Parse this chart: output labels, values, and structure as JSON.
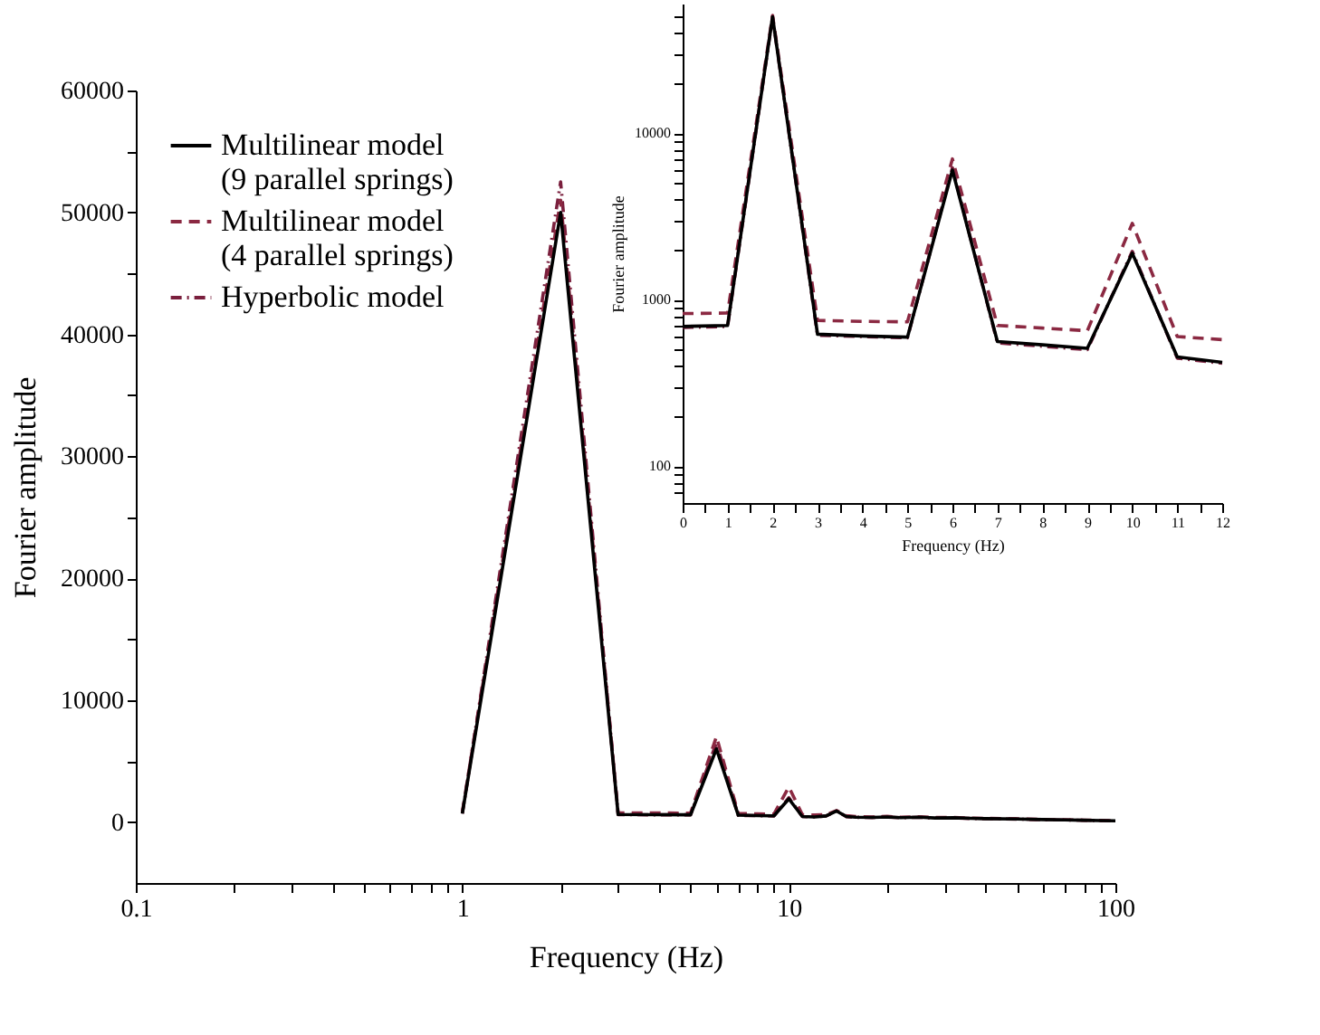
{
  "chart_data": [
    {
      "type": "line",
      "xlabel": "Frequency (Hz)",
      "ylabel": "Fourier amplitude",
      "log": "x",
      "grid": false,
      "legend": "top left",
      "xlim": [
        0.1,
        100
      ],
      "ylim": [
        -5000,
        60000
      ],
      "xticks": [
        0.1,
        {
          "value": 0.2,
          "label": null
        },
        {
          "value": 0.3,
          "label": null
        },
        {
          "value": 0.4,
          "label": null
        },
        {
          "value": 0.5,
          "label": null
        },
        {
          "value": 0.6,
          "label": null
        },
        {
          "value": 0.7,
          "label": null
        },
        {
          "value": 0.8,
          "label": null
        },
        {
          "value": 0.9,
          "label": null
        },
        1,
        {
          "value": 2,
          "label": null
        },
        {
          "value": 3,
          "label": null
        },
        {
          "value": 4,
          "label": null
        },
        {
          "value": 5,
          "label": null
        },
        {
          "value": 6,
          "label": null
        },
        {
          "value": 7,
          "label": null
        },
        {
          "value": 8,
          "label": null
        },
        {
          "value": 9,
          "label": null
        },
        10,
        {
          "value": 20,
          "label": null
        },
        {
          "value": 30,
          "label": null
        },
        {
          "value": 40,
          "label": null
        },
        {
          "value": 50,
          "label": null
        },
        {
          "value": 60,
          "label": null
        },
        {
          "value": 70,
          "label": null
        },
        {
          "value": 80,
          "label": null
        },
        {
          "value": 90,
          "label": null
        },
        100
      ],
      "yticks": [
        0,
        {
          "value": 5000,
          "label": null
        },
        10000,
        {
          "value": 15000,
          "label": null
        },
        20000,
        {
          "value": 25000,
          "label": null
        },
        30000,
        {
          "value": 35000,
          "label": null
        },
        40000,
        {
          "value": 45000,
          "label": null
        },
        50000,
        {
          "value": 55000,
          "label": null
        },
        60000
      ],
      "x": [
        1,
        2,
        3,
        4,
        5,
        6,
        7,
        8,
        9,
        10,
        11,
        12,
        13,
        14,
        15,
        16,
        18,
        20,
        22,
        25,
        28,
        32,
        36,
        40,
        50,
        60,
        70,
        80,
        90,
        100
      ],
      "series": [
        {
          "name": "Multilinear model\n(9 parallel springs)",
          "color": "#000000",
          "line_style": "solid",
          "values": [
            700,
            50000,
            620,
            600,
            595,
            6000,
            560,
            530,
            510,
            1900,
            453,
            420,
            500,
            900,
            450,
            400,
            380,
            420,
            360,
            400,
            330,
            350,
            300,
            280,
            250,
            200,
            180,
            150,
            120,
            100
          ]
        },
        {
          "name": "Multilinear model\n(4 parallel springs)",
          "color": "#8b2942",
          "line_style": "dashed",
          "values": [
            825,
            51000,
            750,
            740,
            735,
            7000,
            700,
            675,
            650,
            2870,
            600,
            575,
            600,
            950,
            520,
            450,
            420,
            460,
            400,
            430,
            370,
            380,
            330,
            300,
            260,
            210,
            190,
            160,
            130,
            110
          ]
        },
        {
          "name": "Hyperbolic model",
          "color": "#7a1f3d",
          "line_style": "dashdot",
          "values": [
            690,
            52500,
            610,
            590,
            590,
            6500,
            550,
            520,
            500,
            2000,
            450,
            420,
            500,
            900,
            440,
            390,
            370,
            410,
            350,
            390,
            320,
            340,
            290,
            270,
            240,
            190,
            170,
            140,
            110,
            90
          ]
        }
      ]
    },
    {
      "type": "line",
      "xlabel": "Frequency (Hz)",
      "ylabel": "Fourier amplitude",
      "log": "y",
      "grid": false,
      "xlim": [
        0,
        12
      ],
      "ylim": [
        60,
        60000
      ],
      "xticks": [
        0,
        {
          "value": 0.5,
          "label": null
        },
        1,
        {
          "value": 1.5,
          "label": null
        },
        2,
        {
          "value": 2.5,
          "label": null
        },
        3,
        {
          "value": 3.5,
          "label": null
        },
        4,
        {
          "value": 4.5,
          "label": null
        },
        5,
        {
          "value": 5.5,
          "label": null
        },
        6,
        {
          "value": 6.5,
          "label": null
        },
        7,
        {
          "value": 7.5,
          "label": null
        },
        8,
        {
          "value": 8.5,
          "label": null
        },
        9,
        {
          "value": 9.5,
          "label": null
        },
        10,
        {
          "value": 10.5,
          "label": null
        },
        11,
        {
          "value": 11.5,
          "label": null
        },
        12
      ],
      "yticks": [
        {
          "value": 70,
          "label": null
        },
        {
          "value": 80,
          "label": null
        },
        {
          "value": 90,
          "label": null
        },
        100,
        {
          "value": 200,
          "label": null
        },
        {
          "value": 300,
          "label": null
        },
        {
          "value": 400,
          "label": null
        },
        {
          "value": 500,
          "label": null
        },
        {
          "value": 600,
          "label": null
        },
        {
          "value": 700,
          "label": null
        },
        {
          "value": 800,
          "label": null
        },
        {
          "value": 900,
          "label": null
        },
        1000,
        {
          "value": 2000,
          "label": null
        },
        {
          "value": 3000,
          "label": null
        },
        {
          "value": 4000,
          "label": null
        },
        {
          "value": 5000,
          "label": null
        },
        {
          "value": 6000,
          "label": null
        },
        {
          "value": 7000,
          "label": null
        },
        {
          "value": 8000,
          "label": null
        },
        {
          "value": 9000,
          "label": null
        },
        10000,
        {
          "value": 20000,
          "label": null
        },
        {
          "value": 30000,
          "label": null
        },
        {
          "value": 40000,
          "label": null
        },
        {
          "value": 50000,
          "label": null
        }
      ],
      "x": [
        0,
        1,
        2,
        3,
        4,
        5,
        6,
        7,
        8,
        9,
        10,
        11,
        12
      ],
      "series": [
        {
          "color": "#000000",
          "line_style": "solid",
          "values": [
            690,
            700,
            50000,
            620,
            605,
            595,
            6000,
            560,
            535,
            510,
            1900,
            453,
            420
          ]
        },
        {
          "color": "#8b2942",
          "line_style": "dashed",
          "values": [
            825,
            830,
            51000,
            750,
            740,
            735,
            7000,
            700,
            675,
            650,
            2870,
            600,
            575
          ]
        },
        {
          "color": "#7a1f3d",
          "line_style": "dashdot",
          "values": [
            680,
            690,
            50000,
            610,
            600,
            590,
            6200,
            550,
            525,
            500,
            1950,
            445,
            415
          ]
        }
      ]
    }
  ]
}
